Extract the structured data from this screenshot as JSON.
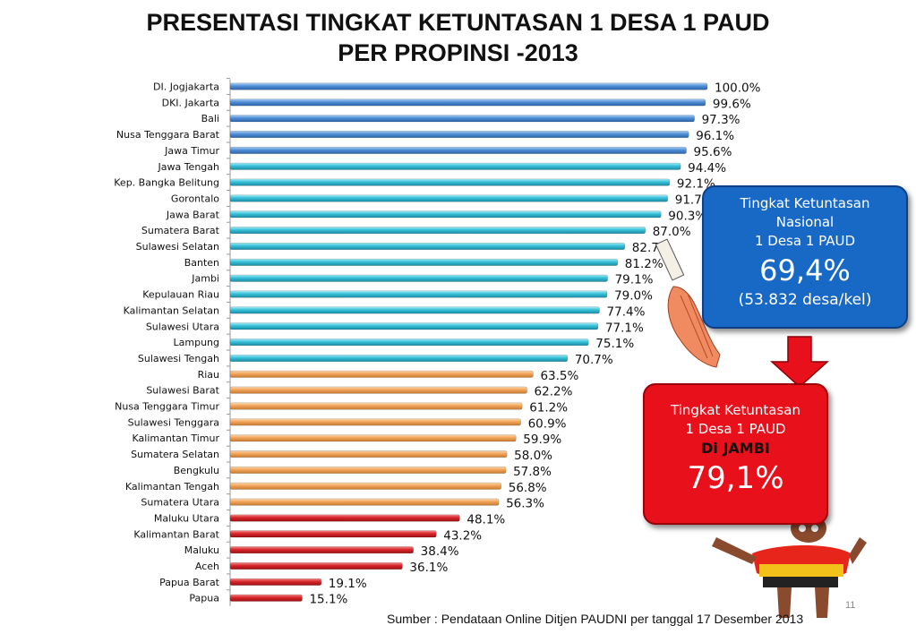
{
  "title_line1": "PRESENTASI TINGKAT KETUNTASAN 1 DESA 1 PAUD",
  "title_line2": "PER PROPINSI  -2013",
  "national_box": {
    "line1": "Tingkat Ketuntasan",
    "line2": "Nasional",
    "line3": "1 Desa 1 PAUD",
    "value": "69,4%",
    "detail": "(53.832 desa/kel)",
    "color": "#1868c6"
  },
  "jambi_box": {
    "line1": "Tingkat Ketuntasan",
    "line2": "1 Desa 1 PAUD",
    "line3": "Di JAMBI",
    "value": "79,1%",
    "color": "#e8101a"
  },
  "source": "Sumber : Pendataan Online Ditjen PAUDNI per tanggal 17 Desember 2013",
  "page_number": "11",
  "colors": {
    "blue": "#4f8fd6",
    "cyan": "#36c0d8",
    "orange": "#f2a45a",
    "red": "#d8252a"
  },
  "chart_data": {
    "type": "bar",
    "orientation": "horizontal",
    "value_format": "percent, one decimal",
    "xlim": [
      0,
      100
    ],
    "categories": [
      "DI. Jogjakarta",
      "DKI. Jakarta",
      "Bali",
      "Nusa Tenggara Barat",
      "Jawa Timur",
      "Jawa Tengah",
      "Kep. Bangka Belitung",
      "Gorontalo",
      "Jawa Barat",
      "Sumatera Barat",
      "Sulawesi Selatan",
      "Banten",
      "Jambi",
      "Kepulauan Riau",
      "Kalimantan Selatan",
      "Sulawesi Utara",
      "Lampung",
      "Sulawesi Tengah",
      "Riau",
      "Sulawesi Barat",
      "Nusa Tenggara Timur",
      "Sulawesi Tenggara",
      "Kalimantan Timur",
      "Sumatera Selatan",
      "Bengkulu",
      "Kalimantan Tengah",
      "Sumatera Utara",
      "Maluku Utara",
      "Kalimantan Barat",
      "Maluku",
      "Aceh",
      "Papua Barat",
      "Papua"
    ],
    "values": [
      100.0,
      99.6,
      97.3,
      96.1,
      95.6,
      94.4,
      92.1,
      91.7,
      90.3,
      87.0,
      82.7,
      81.2,
      79.1,
      79.0,
      77.4,
      77.1,
      75.1,
      70.7,
      63.5,
      62.2,
      61.2,
      60.9,
      59.9,
      58.0,
      57.8,
      56.8,
      56.3,
      48.1,
      43.2,
      38.4,
      36.1,
      19.1,
      15.1
    ],
    "labels": [
      "100.0%",
      "99.6%",
      "97.3%",
      "96.1%",
      "95.6%",
      "94.4%",
      "92.1%",
      "91.7%",
      "90.3%",
      "87.0%",
      "82.7%",
      "81.2%",
      "79.1%",
      "79.0%",
      "77.4%",
      "77.1%",
      "75.1%",
      "70.7%",
      "63.5%",
      "62.2%",
      "61.2%",
      "60.9%",
      "59.9%",
      "58.0%",
      "57.8%",
      "56.8%",
      "56.3%",
      "48.1%",
      "43.2%",
      "38.4%",
      "36.1%",
      "19.1%",
      "15.1%"
    ],
    "bar_colors": [
      "blue",
      "blue",
      "blue",
      "blue",
      "blue",
      "cyan",
      "cyan",
      "cyan",
      "cyan",
      "cyan",
      "cyan",
      "cyan",
      "cyan",
      "cyan",
      "cyan",
      "cyan",
      "cyan",
      "cyan",
      "orange",
      "orange",
      "orange",
      "orange",
      "orange",
      "orange",
      "orange",
      "orange",
      "orange",
      "red",
      "red",
      "red",
      "red",
      "red",
      "red"
    ]
  }
}
